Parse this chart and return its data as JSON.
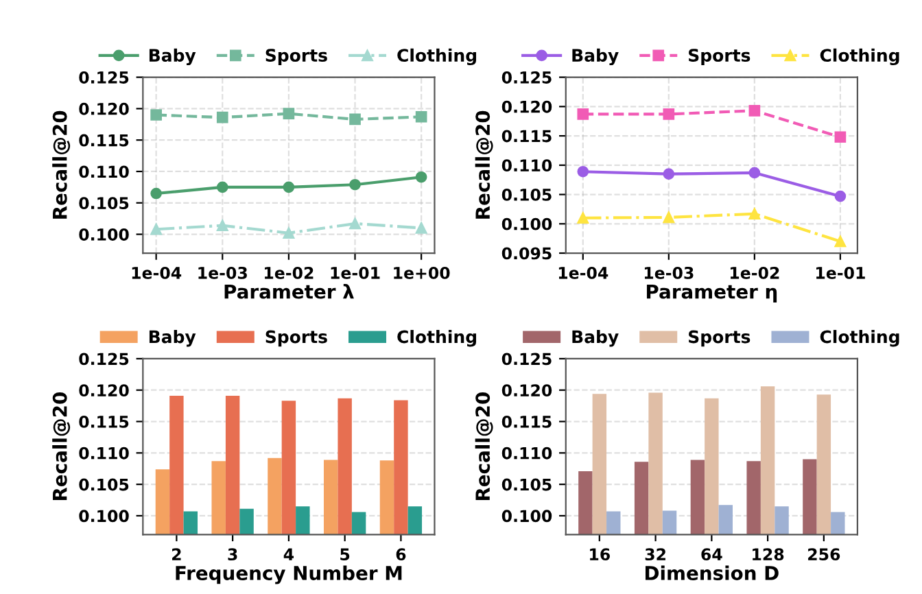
{
  "chart_data": [
    {
      "type": "line",
      "xlabel": "Parameter λ",
      "ylabel": "Recall@20",
      "categories": [
        "1e-04",
        "1e-03",
        "1e-02",
        "1e-01",
        "1e+00"
      ],
      "ylim": [
        0.097,
        0.125
      ],
      "yticks": [
        {
          "value": 0.1,
          "label": "0.100"
        },
        {
          "value": 0.105,
          "label": "0.105"
        },
        {
          "value": 0.11,
          "label": "0.110"
        },
        {
          "value": 0.115,
          "label": "0.115"
        },
        {
          "value": 0.12,
          "label": "0.120"
        },
        {
          "value": 0.125,
          "label": "0.125"
        }
      ],
      "grid": true,
      "legend": "top",
      "series": [
        {
          "name": "Baby",
          "color": "#4a9e6c",
          "marker": "circle",
          "line_style": "solid",
          "values": [
            0.1065,
            0.1075,
            0.1075,
            0.1079,
            0.1091
          ]
        },
        {
          "name": "Sports",
          "color": "#74b89c",
          "marker": "square",
          "line_style": "dashed",
          "values": [
            0.119,
            0.1186,
            0.1192,
            0.1183,
            0.1187
          ]
        },
        {
          "name": "Clothing",
          "color": "#a4d9d0",
          "marker": "triangle",
          "line_style": "dashdot",
          "values": [
            0.1008,
            0.1014,
            0.1002,
            0.1017,
            0.101
          ]
        }
      ]
    },
    {
      "type": "line",
      "xlabel": "Parameter η",
      "ylabel": "Recall@20",
      "categories": [
        "1e-04",
        "1e-03",
        "1e-02",
        "1e-01"
      ],
      "ylim": [
        0.095,
        0.125
      ],
      "yticks": [
        {
          "value": 0.095,
          "label": "0.095"
        },
        {
          "value": 0.1,
          "label": "0.100"
        },
        {
          "value": 0.105,
          "label": "0.105"
        },
        {
          "value": 0.11,
          "label": "0.110"
        },
        {
          "value": 0.115,
          "label": "0.115"
        },
        {
          "value": 0.12,
          "label": "0.120"
        },
        {
          "value": 0.125,
          "label": "0.125"
        }
      ],
      "grid": true,
      "legend": "top",
      "series": [
        {
          "name": "Baby",
          "color": "#9b5de5",
          "marker": "circle",
          "line_style": "solid",
          "values": [
            0.1089,
            0.1085,
            0.1087,
            0.1047
          ]
        },
        {
          "name": "Sports",
          "color": "#f15bb5",
          "marker": "square",
          "line_style": "dashed",
          "values": [
            0.1187,
            0.1187,
            0.1193,
            0.1148
          ]
        },
        {
          "name": "Clothing",
          "color": "#fee440",
          "marker": "triangle",
          "line_style": "dashdot",
          "values": [
            0.101,
            0.1011,
            0.1017,
            0.097
          ]
        }
      ]
    },
    {
      "type": "bar",
      "xlabel": "Frequency Number M",
      "ylabel": "Recall@20",
      "categories": [
        "2",
        "3",
        "4",
        "5",
        "6"
      ],
      "ylim": [
        0.097,
        0.125
      ],
      "yticks": [
        {
          "value": 0.1,
          "label": "0.100"
        },
        {
          "value": 0.105,
          "label": "0.105"
        },
        {
          "value": 0.11,
          "label": "0.110"
        },
        {
          "value": 0.115,
          "label": "0.115"
        },
        {
          "value": 0.12,
          "label": "0.120"
        },
        {
          "value": 0.125,
          "label": "0.125"
        }
      ],
      "grid": "y",
      "legend": "top",
      "series": [
        {
          "name": "Baby",
          "color": "#f4a261",
          "values": [
            0.1074,
            0.1087,
            0.1092,
            0.1089,
            0.1088
          ]
        },
        {
          "name": "Sports",
          "color": "#e76f51",
          "values": [
            0.1191,
            0.1191,
            0.1183,
            0.1187,
            0.1184
          ]
        },
        {
          "name": "Clothing",
          "color": "#2a9d8f",
          "values": [
            0.1007,
            0.1011,
            0.1015,
            0.1006,
            0.1015
          ]
        }
      ]
    },
    {
      "type": "bar",
      "xlabel": "Dimension D",
      "ylabel": "Recall@20",
      "categories": [
        "16",
        "32",
        "64",
        "128",
        "256"
      ],
      "ylim": [
        0.097,
        0.125
      ],
      "yticks": [
        {
          "value": 0.1,
          "label": "0.100"
        },
        {
          "value": 0.105,
          "label": "0.105"
        },
        {
          "value": 0.11,
          "label": "0.110"
        },
        {
          "value": 0.115,
          "label": "0.115"
        },
        {
          "value": 0.12,
          "label": "0.120"
        },
        {
          "value": 0.125,
          "label": "0.125"
        }
      ],
      "grid": "y",
      "legend": "top",
      "series": [
        {
          "name": "Baby",
          "color": "#a2666a",
          "values": [
            0.1071,
            0.1086,
            0.1089,
            0.1087,
            0.109
          ]
        },
        {
          "name": "Sports",
          "color": "#e0bea6",
          "values": [
            0.1194,
            0.1196,
            0.1187,
            0.1206,
            0.1193
          ]
        },
        {
          "name": "Clothing",
          "color": "#9fb1d3",
          "values": [
            0.1007,
            0.1008,
            0.1017,
            0.1015,
            0.1006
          ]
        }
      ]
    }
  ]
}
